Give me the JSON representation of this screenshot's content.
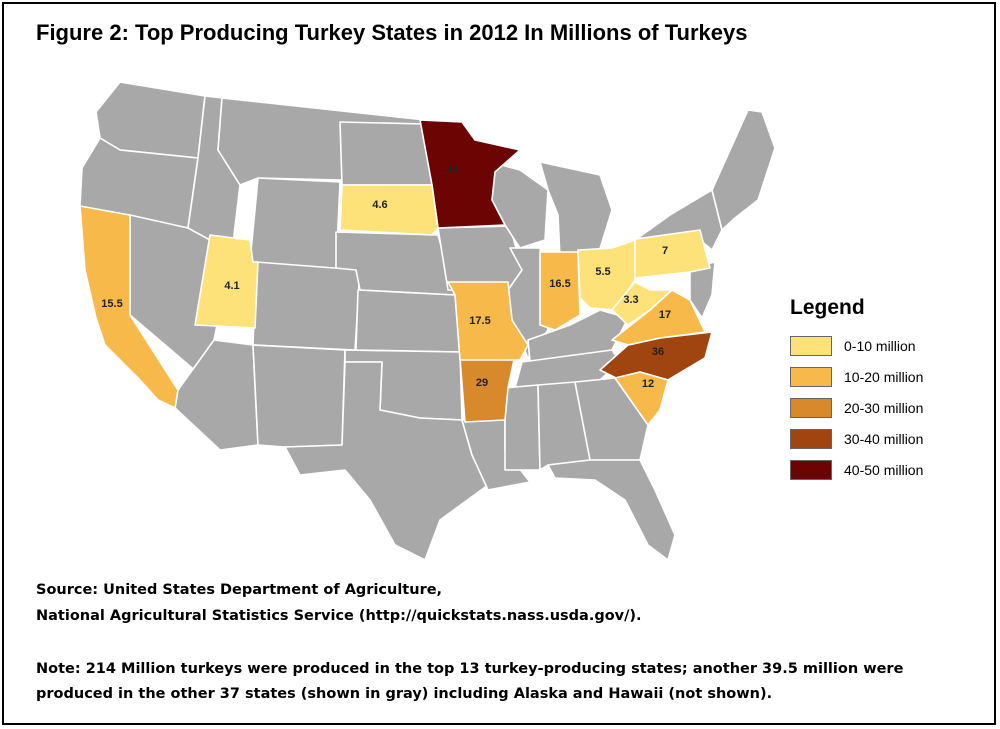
{
  "title": "Figure 2: Top Producing Turkey States in 2012 In Millions of Turkeys",
  "legend": {
    "title": "Legend",
    "items": [
      {
        "label": "0-10 million",
        "color": "#fde27a"
      },
      {
        "label": "10-20 million",
        "color": "#f6b94a"
      },
      {
        "label": "20-30 million",
        "color": "#d8892b"
      },
      {
        "label": "30-40 million",
        "color": "#a0450f"
      },
      {
        "label": "40-50 million",
        "color": "#6d0404"
      }
    ]
  },
  "colors": {
    "other_states": "#a8a8a8",
    "state_border": "#ffffff"
  },
  "states": [
    {
      "name": "Minnesota",
      "value": "46",
      "color": "#6d0404"
    },
    {
      "name": "North Carolina",
      "value": "36",
      "color": "#a0450f"
    },
    {
      "name": "Arkansas",
      "value": "29",
      "color": "#d8892b"
    },
    {
      "name": "Missouri",
      "value": "17.5",
      "color": "#f6b94a"
    },
    {
      "name": "Virginia",
      "value": "17",
      "color": "#f6b94a"
    },
    {
      "name": "Indiana",
      "value": "16.5",
      "color": "#f6b94a"
    },
    {
      "name": "California",
      "value": "15.5",
      "color": "#f6b94a"
    },
    {
      "name": "South Carolina",
      "value": "12",
      "color": "#f6b94a"
    },
    {
      "name": "Pennsylvania",
      "value": "7",
      "color": "#fde27a"
    },
    {
      "name": "Ohio",
      "value": "5.5",
      "color": "#fde27a"
    },
    {
      "name": "South Dakota",
      "value": "4.6",
      "color": "#fde27a"
    },
    {
      "name": "Utah",
      "value": "4.1",
      "color": "#fde27a"
    },
    {
      "name": "West Virginia",
      "value": "3.3",
      "color": "#fde27a"
    }
  ],
  "source_line1": "Source: United States Department of Agriculture,",
  "source_line2": "National Agricultural Statistics Service (http://quickstats.nass.usda.gov/).",
  "note_line1": "Note: 214 Million turkeys were produced in the top 13 turkey-producing states; another 39.5 million were",
  "note_line2": "produced in the other 37 states (shown in gray) including Alaska and Hawaii (not shown)."
}
